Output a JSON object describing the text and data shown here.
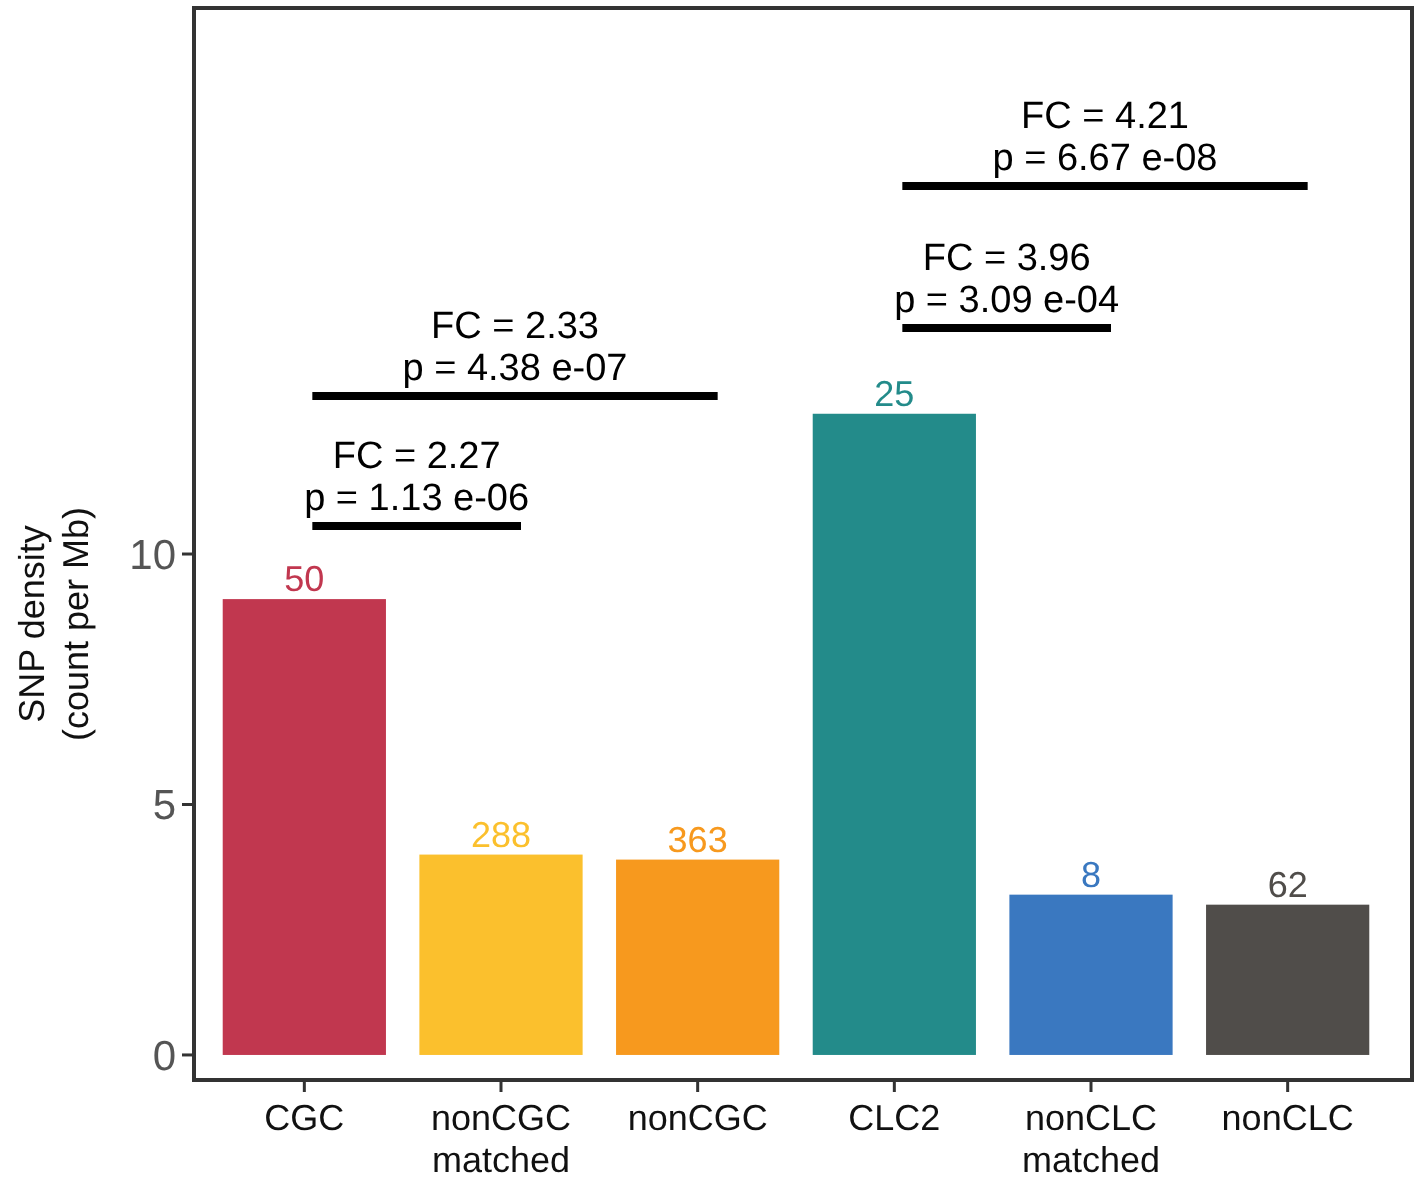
{
  "chart_data": {
    "type": "bar",
    "ylabel": "SNP density\n(count per Mb)",
    "categories": [
      "CGC",
      "nonCGC\nmatched",
      "nonCGC",
      "CLC2",
      "nonCLC\nmatched",
      "nonCLC"
    ],
    "values": [
      9.1,
      4.0,
      3.9,
      12.8,
      3.2,
      3.0
    ],
    "colors": [
      "#c1374f",
      "#fbc02d",
      "#f7991e",
      "#238b8a",
      "#3a78c0",
      "#504d4a"
    ],
    "ylim": [
      -0.5,
      20.9
    ],
    "yticks": [
      0,
      5,
      10
    ],
    "grid": false,
    "annotations": [
      "FC = 2.27\np = 1.13 e-06",
      "FC = 2.33\np = 4.38 e-07",
      "FC = 3.96\np =  3.09 e-04",
      "FC = 4.21\np = 6.67 e-08",
      {
        "text": "50",
        "x": "CGC",
        "y": 9.1
      },
      {
        "text": "288",
        "x": "nonCGC\nmatched",
        "y": 4.0
      },
      {
        "text": "363",
        "x": "nonCGC",
        "y": 3.9
      },
      {
        "text": "25",
        "x": "CLC2",
        "y": 12.8
      },
      {
        "text": "8",
        "x": "nonCLC\nmatched",
        "y": 3.2
      },
      {
        "text": "62",
        "x": "nonCLC",
        "y": 3.0
      }
    ]
  }
}
